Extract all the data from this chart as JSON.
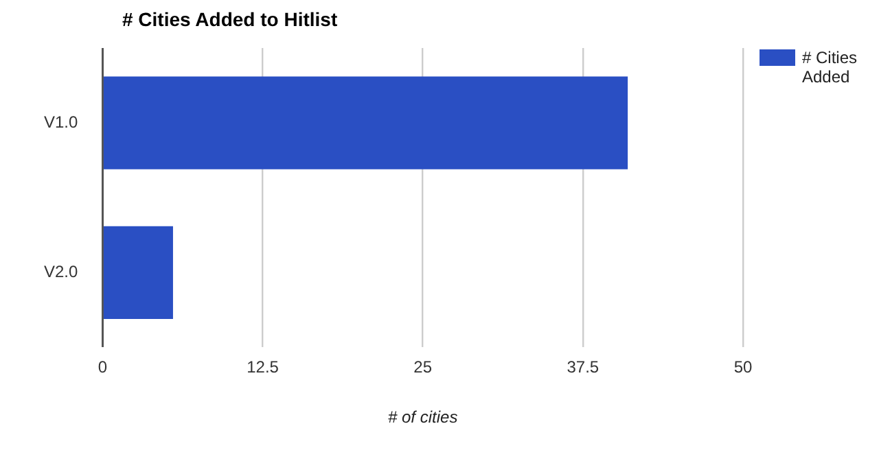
{
  "chart_data": {
    "type": "bar",
    "orientation": "horizontal",
    "title": "# Cities Added to Hitlist",
    "xlabel": "# of cities",
    "categories": [
      "V1.0",
      "V2.0"
    ],
    "series": [
      {
        "name": "# Cities Added",
        "color": "#2a4fc3",
        "values": [
          41,
          5.5
        ]
      }
    ],
    "xlim": [
      0,
      50
    ],
    "xticks": [
      0,
      12.5,
      25,
      37.5,
      50
    ],
    "grid": "x",
    "legend": "top right"
  }
}
